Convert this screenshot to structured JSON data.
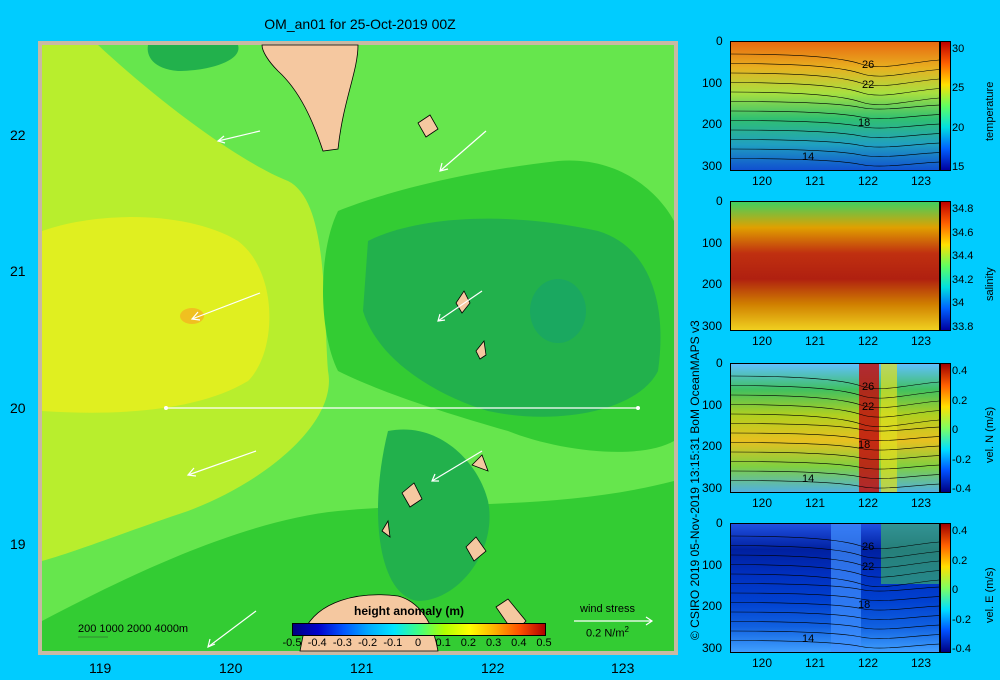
{
  "title": "OM_an01 for 25-Oct-2019 00Z",
  "map": {
    "x_ticks": [
      "119",
      "120",
      "121",
      "122",
      "123"
    ],
    "y_ticks": [
      "22",
      "21",
      "20",
      "19"
    ],
    "depth_legend": "200  1000  2000  4000m",
    "colorbar": {
      "title": "height anomaly  (m)",
      "ticks": [
        "-0.5",
        "-0.4",
        "-0.3",
        "-0.2",
        "-0.1",
        "0",
        "0.1",
        "0.2",
        "0.3",
        "0.4",
        "0.5"
      ],
      "colors": [
        "#000080",
        "#0000cc",
        "#0055ff",
        "#00aaff",
        "#00e5ff",
        "#40ff80",
        "#b0ff00",
        "#ffff00",
        "#ffb000",
        "#ff5000",
        "#b00000"
      ]
    },
    "wind_legend": {
      "label": "wind stress",
      "value": "0.2 N/m",
      "superscript": "2"
    },
    "colors": {
      "land": "#f5c8a0",
      "dark_green": "#22b14c",
      "mid_green": "#33cc33",
      "light_green": "#66e64d",
      "yellow_green": "#b8ee2d",
      "yellow": "#e0ef20"
    }
  },
  "panels": [
    {
      "name": "temperature",
      "colorbar_label": "temperature",
      "colorbar_ticks": [
        "30",
        "25",
        "20",
        "15"
      ],
      "y_ticks": [
        "0",
        "100",
        "200",
        "300"
      ],
      "x_ticks": [
        "120",
        "121",
        "122",
        "123"
      ],
      "contour_labels": [
        "26",
        "22",
        "18",
        "14"
      ]
    },
    {
      "name": "salinity",
      "colorbar_label": "salinity",
      "colorbar_ticks": [
        "34.8",
        "34.6",
        "34.4",
        "34.2",
        "34",
        "33.8"
      ],
      "y_ticks": [
        "0",
        "100",
        "200",
        "300"
      ],
      "x_ticks": [
        "120",
        "121",
        "122",
        "123"
      ],
      "contour_labels": []
    },
    {
      "name": "vel-n",
      "colorbar_label": "vel. N  (m/s)",
      "colorbar_ticks": [
        "0.4",
        "0.2",
        "0",
        "-0.2",
        "-0.4"
      ],
      "y_ticks": [
        "0",
        "100",
        "200",
        "300"
      ],
      "x_ticks": [
        "120",
        "121",
        "122",
        "123"
      ],
      "contour_labels": [
        "26",
        "22",
        "18",
        "14"
      ]
    },
    {
      "name": "vel-e",
      "colorbar_label": "vel. E  (m/s)",
      "colorbar_ticks": [
        "0.4",
        "0.2",
        "0",
        "-0.2",
        "-0.4"
      ],
      "y_ticks": [
        "0",
        "100",
        "200",
        "300"
      ],
      "x_ticks": [
        "120",
        "121",
        "122",
        "123"
      ],
      "contour_labels": [
        "26",
        "22",
        "18",
        "14"
      ]
    }
  ],
  "credit": "© CSIRO 2019   05-Nov-2019 13:15:31  BoM OceanMAPS v3"
}
